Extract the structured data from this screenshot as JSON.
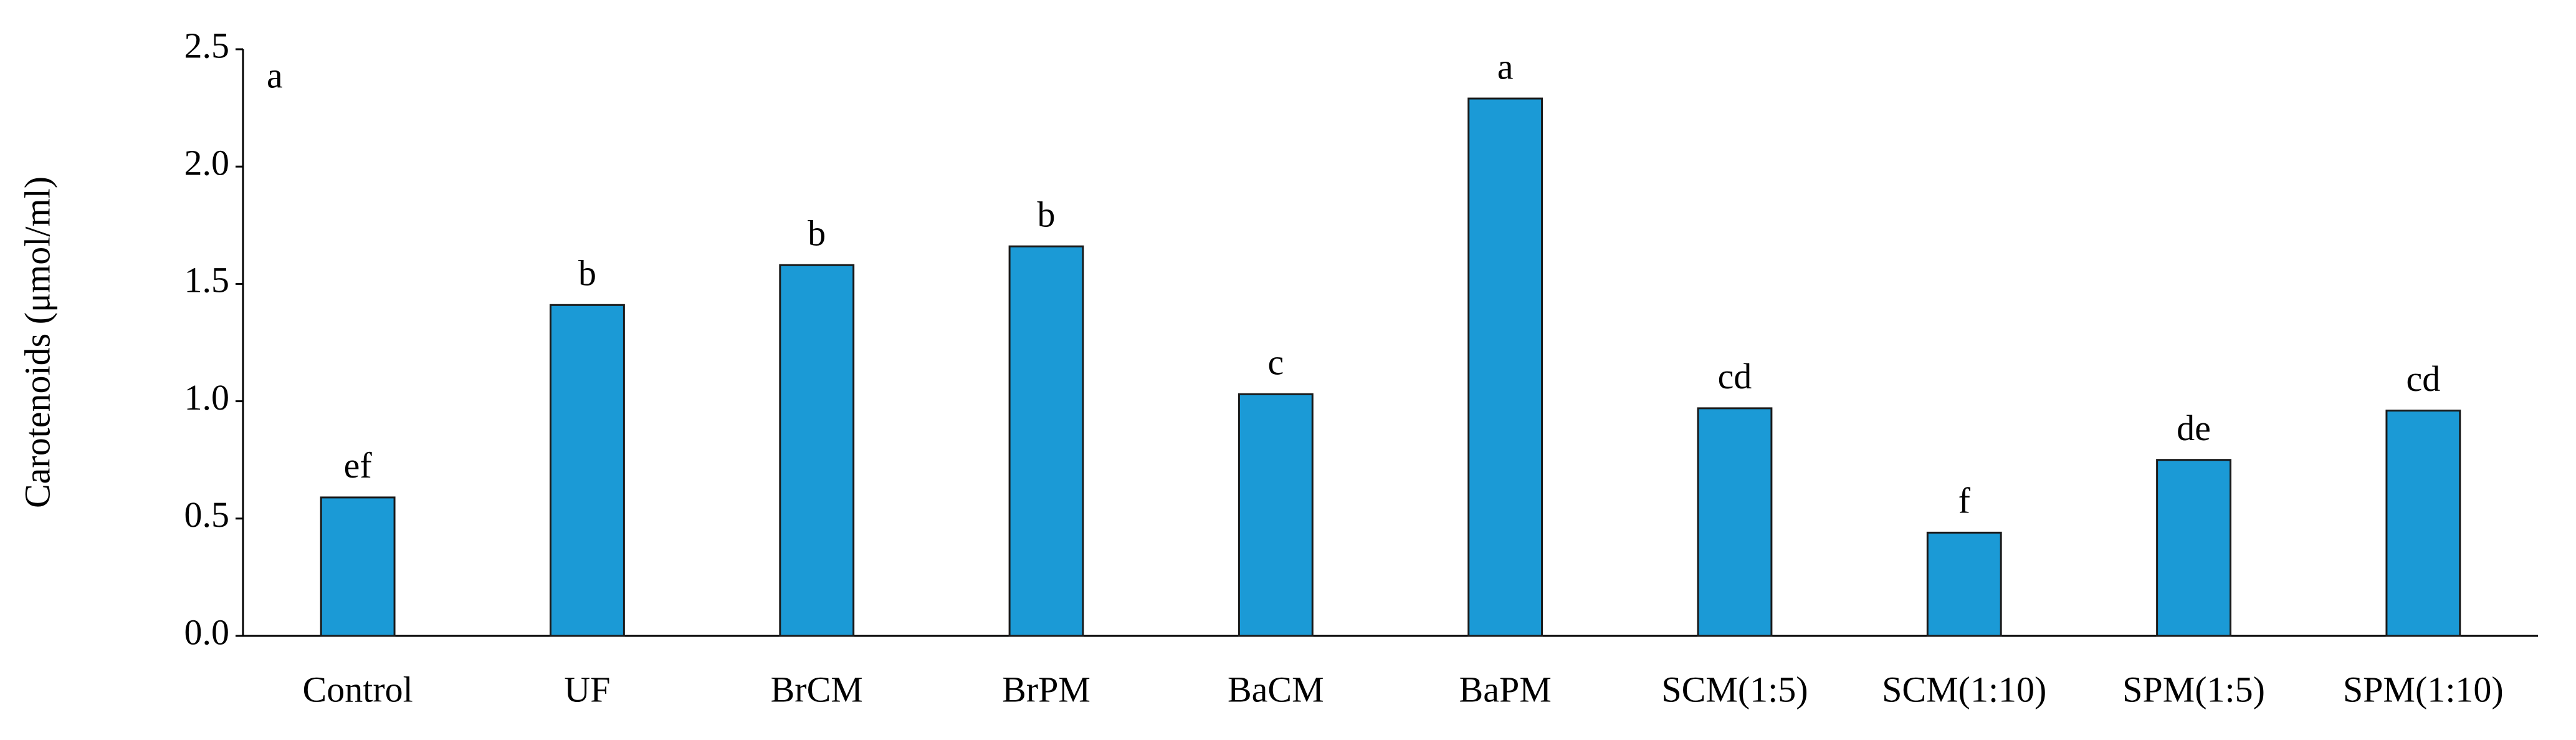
{
  "chart_data": {
    "type": "bar",
    "panel_label": "a",
    "y_label": "Carotenoids (μmol/ml)",
    "categories": [
      "Control",
      "UF",
      "BrCM",
      "BrPM",
      "BaCM",
      "BaPM",
      "SCM(1:5)",
      "SCM(1:10)",
      "SPM(1:5)",
      "SPM(1:10)"
    ],
    "values": [
      0.59,
      1.41,
      1.58,
      1.66,
      1.03,
      2.29,
      0.97,
      0.44,
      0.75,
      0.96
    ],
    "annotations": [
      "ef",
      "b",
      "b",
      "b",
      "c",
      "a",
      "cd",
      "f",
      "de",
      "cd"
    ],
    "color": "#1b9ad6",
    "ylim": [
      0,
      2.5
    ],
    "yticks": [
      {
        "value": 0,
        "label": "0.0"
      },
      0.5,
      {
        "value": 1,
        "label": "1.0"
      },
      1.5,
      {
        "value": 2,
        "label": "2.0"
      },
      2.5
    ],
    "grid": false
  }
}
